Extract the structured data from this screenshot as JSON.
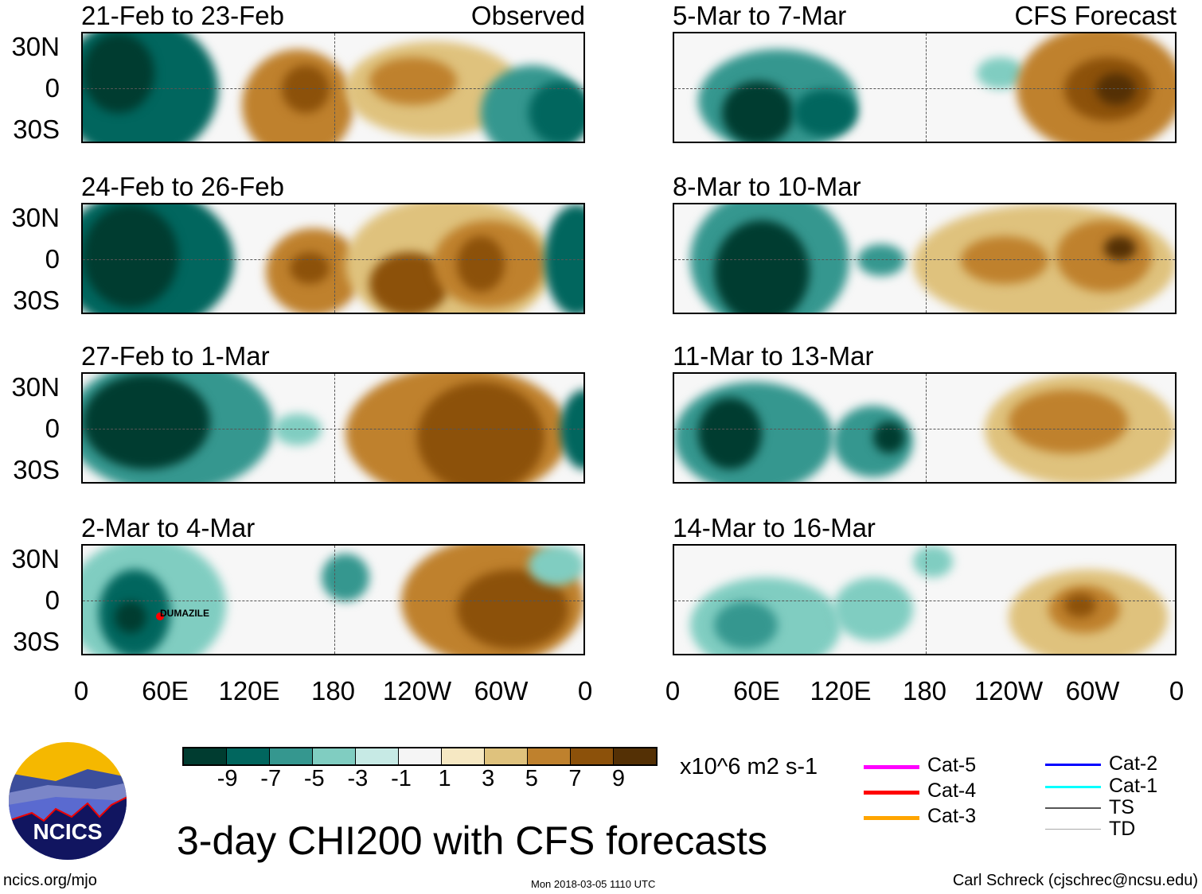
{
  "panels_left": [
    {
      "title": "21-Feb to 23-Feb",
      "tag": "Observed"
    },
    {
      "title": "24-Feb to 26-Feb"
    },
    {
      "title": "27-Feb to 1-Mar"
    },
    {
      "title": "2-Mar to 4-Mar",
      "storm": "DUMAZILE"
    }
  ],
  "panels_right": [
    {
      "title": "5-Mar to 7-Mar",
      "tag": "CFS Forecast"
    },
    {
      "title": "8-Mar to 10-Mar"
    },
    {
      "title": "11-Mar to 13-Mar"
    },
    {
      "title": "14-Mar to 16-Mar"
    }
  ],
  "lat_labels": [
    "30N",
    "0",
    "30S"
  ],
  "lon_labels": [
    "0",
    "60E",
    "120E",
    "180",
    "120W",
    "60W",
    "0"
  ],
  "colorbar": {
    "colors": [
      "#003c30",
      "#01665e",
      "#35978f",
      "#80cdc1",
      "#c7eae5",
      "#f5f5f5",
      "#f6e8c3",
      "#dfc27d",
      "#bf812d",
      "#8c510a",
      "#543005"
    ],
    "labels": [
      "-9",
      "-7",
      "-5",
      "-3",
      "-1",
      "1",
      "3",
      "5",
      "7",
      "9"
    ],
    "units": "x10^6 m2 s-1"
  },
  "legend": [
    {
      "label": "Cat-5",
      "color": "#ff00ff"
    },
    {
      "label": "Cat-4",
      "color": "#ff0000"
    },
    {
      "label": "Cat-3",
      "color": "#ffa500"
    },
    {
      "label": "Cat-2",
      "color": "#0000ff"
    },
    {
      "label": "Cat-1",
      "color": "#00ffff"
    },
    {
      "label": "TS",
      "color": "#555555"
    },
    {
      "label": "TD",
      "color": "#aaaaaa"
    }
  ],
  "title": "3-day CHI200 with CFS forecasts",
  "logo_text": "NCICS",
  "url": "ncics.org/mjo",
  "timestamp": "Mon 2018-03-05 1110 UTC",
  "credit": "Carl Schreck (cjschrec@ncsu.edu)"
}
